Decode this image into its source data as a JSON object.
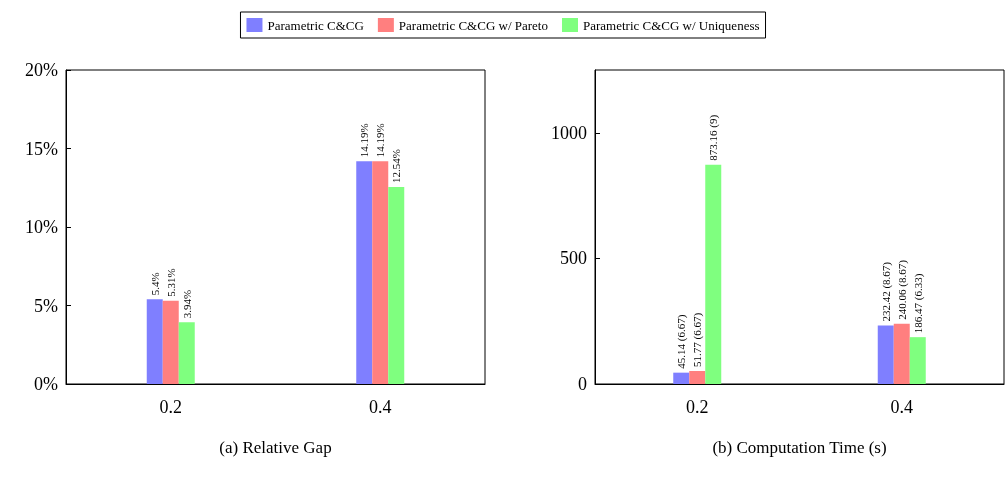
{
  "chart_data": [
    {
      "type": "bar",
      "xlabel": "(a) Relative Gap",
      "categories": [
        "0.2",
        "0.4"
      ],
      "ylim": [
        0,
        20
      ],
      "yticks": [
        {
          "value": 0,
          "label": "0%"
        },
        {
          "value": 5,
          "label": "5%"
        },
        {
          "value": 10,
          "label": "10%"
        },
        {
          "value": 15,
          "label": "15%"
        },
        {
          "value": 20,
          "label": "20%"
        }
      ],
      "legend": "top",
      "grid": false,
      "series": [
        {
          "name": "Parametric C&CG",
          "color": "#7f7fff",
          "values": [
            5.4,
            14.19
          ],
          "value_labels": [
            "5.4%",
            "14.19%"
          ]
        },
        {
          "name": "Parametric C&CG w/ Pareto",
          "color": "#ff7f7f",
          "values": [
            5.31,
            14.19
          ],
          "value_labels": [
            "5.31%",
            "14.19%"
          ]
        },
        {
          "name": "Parametric C&CG w/ Uniqueness",
          "color": "#7fff7f",
          "values": [
            3.94,
            12.54
          ],
          "value_labels": [
            "3.94%",
            "12.54%"
          ]
        }
      ]
    },
    {
      "type": "bar",
      "xlabel": "(b) Computation Time (s)",
      "categories": [
        "0.2",
        "0.4"
      ],
      "ylim": [
        0,
        1250
      ],
      "yticks": [
        0,
        500,
        1000
      ],
      "legend": false,
      "grid": false,
      "series": [
        {
          "color": "#7f7fff",
          "values": [
            45.14,
            232.42
          ],
          "value_labels": [
            "45.14 (6.67)",
            "232.42 (8.67)"
          ]
        },
        {
          "color": "#ff7f7f",
          "values": [
            51.77,
            240.06
          ],
          "value_labels": [
            "51.77 (6.67)",
            "240.06 (8.67)"
          ]
        },
        {
          "color": "#7fff7f",
          "values": [
            873.16,
            186.47
          ],
          "value_labels": [
            "873.16 (9)",
            "186.47 (6.33)"
          ]
        }
      ]
    }
  ]
}
